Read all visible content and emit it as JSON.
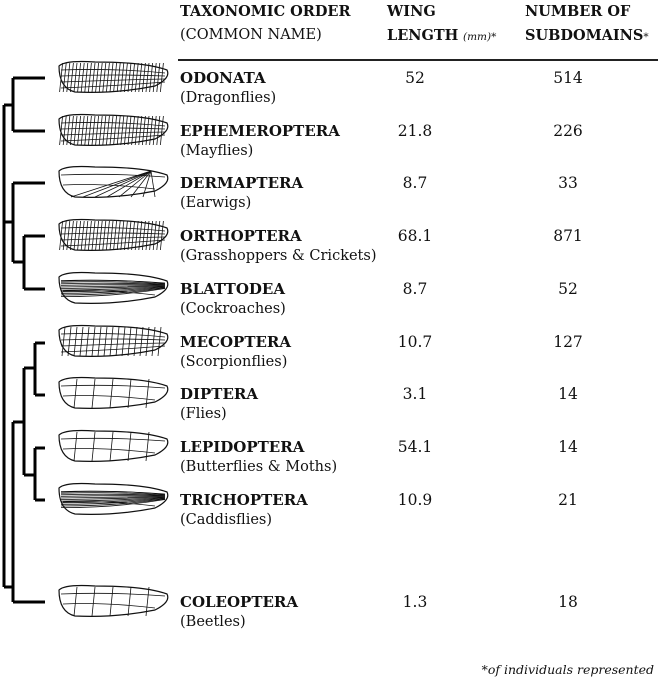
{
  "header": {
    "col1_line1": "TAXONOMIC ORDER",
    "col1_line2": "(COMMON NAME)",
    "col2_line1": "WING",
    "col2_line2": "LENGTH",
    "col2_unit": "(mm)*",
    "col3_line1": "NUMBER OF",
    "col3_line2": "SUBDOMAINS",
    "col3_mark": "*"
  },
  "rows": [
    {
      "order": "ODONATA",
      "common": "(Dragonflies)",
      "wing_length": "52",
      "subdomains": "514",
      "wing": "dense"
    },
    {
      "order": "EPHEMEROPTERA",
      "common": "(Mayflies)",
      "wing_length": "21.8",
      "subdomains": "226",
      "wing": "dense"
    },
    {
      "order": "DERMAPTERA",
      "common": "(Earwigs)",
      "wing_length": "8.7",
      "subdomains": "33",
      "wing": "fan"
    },
    {
      "order": "ORTHOPTERA",
      "common": "(Grasshoppers & Crickets)",
      "wing_length": "68.1",
      "subdomains": "871",
      "wing": "dense"
    },
    {
      "order": "BLATTODEA",
      "common": "(Cockroaches)",
      "wing_length": "8.7",
      "subdomains": "52",
      "wing": "streak"
    },
    {
      "order": "MECOPTERA",
      "common": "(Scorpionflies)",
      "wing_length": "10.7",
      "subdomains": "127",
      "wing": "medium"
    },
    {
      "order": "DIPTERA",
      "common": "(Flies)",
      "wing_length": "3.1",
      "subdomains": "14",
      "wing": "sparse"
    },
    {
      "order": "LEPIDOPTERA",
      "common": "(Butterflies & Moths)",
      "wing_length": "54.1",
      "subdomains": "14",
      "wing": "sparse"
    },
    {
      "order": "TRICHOPTERA",
      "common": "(Caddisflies)",
      "wing_length": "10.9",
      "subdomains": "21",
      "wing": "streak"
    },
    {
      "order": "COLEOPTERA",
      "common": "(Beetles)",
      "wing_length": "1.3",
      "subdomains": "18",
      "wing": "sparse"
    }
  ],
  "footnote": "*of individuals represented"
}
